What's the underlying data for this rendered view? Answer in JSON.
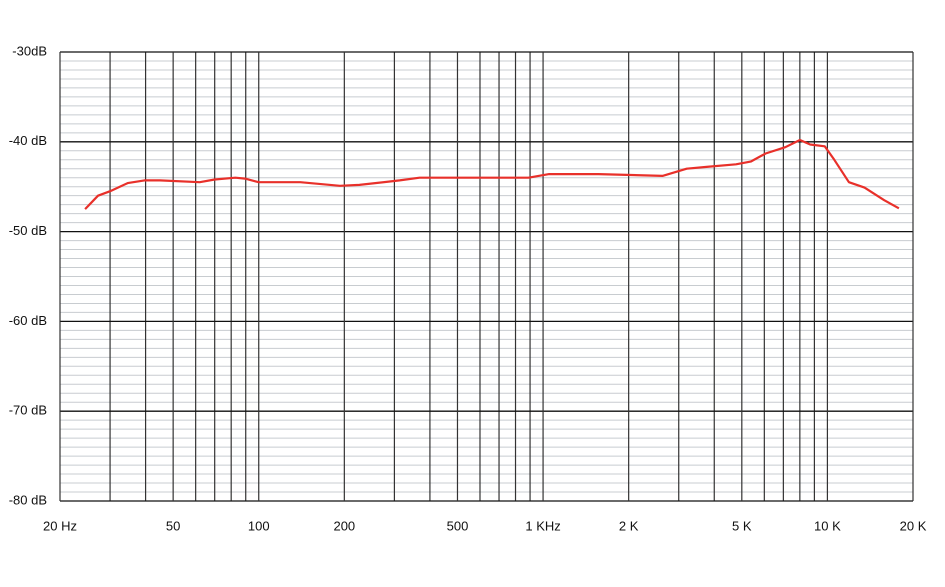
{
  "chart_data": {
    "type": "line",
    "xscale": "log",
    "color": "#e8302a",
    "grid": true,
    "x": [
      24.5,
      27.2,
      30,
      34.6,
      39.6,
      44.9,
      62,
      70,
      82.8,
      89.5,
      100,
      140,
      193,
      226,
      313,
      368,
      703,
      889,
      1050,
      1566,
      2630,
      3200,
      3760,
      4770,
      5375,
      6060,
      7110,
      8000,
      8700,
      9780,
      10570,
      11900,
      13500,
      15840,
      17840
    ],
    "values": [
      -47.5,
      -46,
      -45.5,
      -44.6,
      -44.3,
      -44.3,
      -44.5,
      -44.2,
      -44,
      -44.1,
      -44.5,
      -44.5,
      -44.9,
      -44.8,
      -44.3,
      -44,
      -44,
      -44,
      -43.6,
      -43.6,
      -43.8,
      -43,
      -42.8,
      -42.5,
      -42.2,
      -41.3,
      -40.6,
      -39.8,
      -40.3,
      -40.5,
      -42,
      -44.5,
      -45.1,
      -46.5,
      -47.4
    ],
    "xlim": [
      20,
      20000
    ],
    "ylim": [
      -80,
      -30
    ],
    "xticks": [
      {
        "value": 20,
        "label": "20 Hz"
      },
      50,
      100,
      200,
      500,
      {
        "value": 1000,
        "label": "1 KHz"
      },
      {
        "value": 2000,
        "label": "2 K"
      },
      {
        "value": 5000,
        "label": "5 K"
      },
      {
        "value": 10000,
        "label": "10 K"
      },
      {
        "value": 20000,
        "label": "20 K"
      }
    ],
    "xgrid": [
      30,
      40,
      60,
      70,
      80,
      90,
      300,
      400,
      600,
      700,
      800,
      900,
      3000,
      4000,
      6000,
      7000,
      8000,
      9000
    ],
    "yticks": [
      {
        "value": -30,
        "label": "-30dB"
      },
      {
        "value": -40,
        "label": "-40 dB"
      },
      {
        "value": -50,
        "label": "-50 dB"
      },
      {
        "value": -60,
        "label": "-60 dB"
      },
      {
        "value": -70,
        "label": "-70 dB"
      },
      {
        "value": -80,
        "label": "-80 dB"
      }
    ],
    "yminor": [
      -31,
      -32,
      -33,
      -34,
      -35,
      -36,
      -37,
      -38,
      -39,
      -41,
      -42,
      -43,
      -44,
      -45,
      -46,
      -47,
      -48,
      -49,
      -51,
      -52,
      -53,
      -54,
      -55,
      -56,
      -57,
      -58,
      -59,
      -61,
      -62,
      -63,
      -64,
      -65,
      -66,
      -67,
      -68,
      -69,
      -71,
      -72,
      -73,
      -74,
      -75,
      -76,
      -77,
      -78,
      -79
    ]
  }
}
